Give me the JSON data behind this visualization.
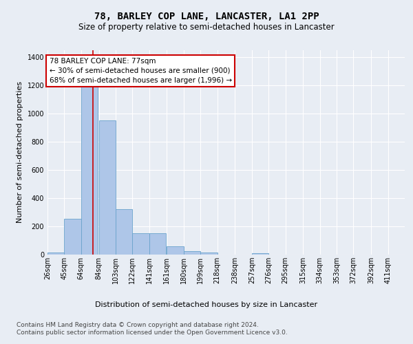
{
  "title": "78, BARLEY COP LANE, LANCASTER, LA1 2PP",
  "subtitle": "Size of property relative to semi-detached houses in Lancaster",
  "xlabel": "Distribution of semi-detached houses by size in Lancaster",
  "ylabel": "Number of semi-detached properties",
  "footer1": "Contains HM Land Registry data © Crown copyright and database right 2024.",
  "footer2": "Contains public sector information licensed under the Open Government Licence v3.0.",
  "annotation_title": "78 BARLEY COP LANE: 77sqm",
  "annotation_line1": "← 30% of semi-detached houses are smaller (900)",
  "annotation_line2": "68% of semi-detached houses are larger (1,996) →",
  "property_size": 77,
  "bin_labels": [
    "26sqm",
    "45sqm",
    "64sqm",
    "84sqm",
    "103sqm",
    "122sqm",
    "141sqm",
    "161sqm",
    "180sqm",
    "199sqm",
    "218sqm",
    "238sqm",
    "257sqm",
    "276sqm",
    "295sqm",
    "315sqm",
    "334sqm",
    "353sqm",
    "372sqm",
    "392sqm",
    "411sqm"
  ],
  "bin_edges": [
    26,
    45,
    64,
    84,
    103,
    122,
    141,
    161,
    180,
    199,
    218,
    238,
    257,
    276,
    295,
    315,
    334,
    353,
    372,
    392,
    411
  ],
  "bar_values": [
    15,
    255,
    1200,
    950,
    320,
    150,
    150,
    60,
    25,
    15,
    0,
    0,
    10,
    0,
    0,
    0,
    0,
    0,
    0,
    0,
    0
  ],
  "bar_color": "#aec6e8",
  "bar_edge_color": "#6aa3cc",
  "highlight_color": "#cc0000",
  "ylim": [
    0,
    1450
  ],
  "yticks": [
    0,
    200,
    400,
    600,
    800,
    1000,
    1200,
    1400
  ],
  "bg_color": "#e8edf4",
  "plot_bg_color": "#e8edf4",
  "grid_color": "#ffffff",
  "annotation_box_color": "#ffffff",
  "annotation_box_edge": "#cc0000",
  "title_fontsize": 10,
  "subtitle_fontsize": 8.5,
  "axis_label_fontsize": 8,
  "tick_fontsize": 7,
  "annotation_fontsize": 7.5,
  "footer_fontsize": 6.5
}
